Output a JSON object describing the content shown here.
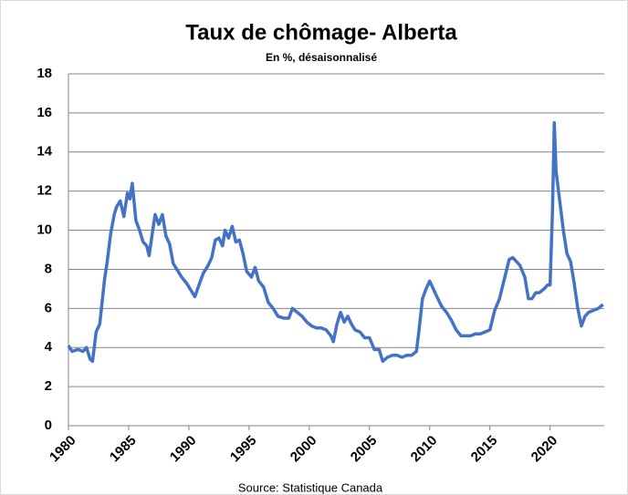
{
  "chart_data": {
    "type": "line",
    "title": "Taux de chômage- Alberta",
    "subtitle": "En %, désaisonnalisé",
    "source": "Source: Statistique Canada",
    "xlim": [
      1980,
      2024.5
    ],
    "xticks": [
      1980,
      1985,
      1990,
      1995,
      2000,
      2005,
      2010,
      2015,
      2020
    ],
    "ylim": [
      0,
      18
    ],
    "yticks": [
      0,
      2,
      4,
      6,
      8,
      10,
      12,
      14,
      16,
      18
    ],
    "grid": true,
    "x": [
      1980.0,
      1980.3,
      1980.8,
      1981.2,
      1981.5,
      1981.8,
      1982.0,
      1982.3,
      1982.6,
      1983.0,
      1983.2,
      1983.5,
      1983.8,
      1984.0,
      1984.3,
      1984.6,
      1984.9,
      1985.1,
      1985.3,
      1985.6,
      1985.9,
      1986.2,
      1986.5,
      1986.7,
      1987.0,
      1987.2,
      1987.5,
      1987.8,
      1988.1,
      1988.4,
      1988.7,
      1989.0,
      1989.4,
      1989.8,
      1990.2,
      1990.5,
      1990.9,
      1991.2,
      1991.6,
      1991.9,
      1992.2,
      1992.5,
      1992.8,
      1993.0,
      1993.3,
      1993.6,
      1993.9,
      1994.2,
      1994.5,
      1994.8,
      1995.2,
      1995.5,
      1995.8,
      1996.2,
      1996.6,
      1997.0,
      1997.4,
      1997.9,
      1998.3,
      1998.6,
      1999.0,
      1999.4,
      1999.8,
      2000.2,
      2000.6,
      2001.0,
      2001.4,
      2001.8,
      2002.0,
      2002.3,
      2002.6,
      2002.9,
      2003.2,
      2003.5,
      2003.8,
      2004.2,
      2004.6,
      2005.0,
      2005.4,
      2005.8,
      2006.1,
      2006.5,
      2006.9,
      2007.3,
      2007.7,
      2008.1,
      2008.5,
      2008.9,
      2009.1,
      2009.4,
      2009.7,
      2010.0,
      2010.3,
      2010.6,
      2011.0,
      2011.4,
      2011.8,
      2012.2,
      2012.6,
      2013.0,
      2013.4,
      2013.8,
      2014.2,
      2014.6,
      2015.0,
      2015.4,
      2015.8,
      2016.2,
      2016.6,
      2016.9,
      2017.2,
      2017.5,
      2017.9,
      2018.2,
      2018.5,
      2018.8,
      2019.1,
      2019.5,
      2019.8,
      2020.0,
      2020.2,
      2020.35,
      2020.5,
      2020.8,
      2021.1,
      2021.4,
      2021.7,
      2022.0,
      2022.3,
      2022.6,
      2022.9,
      2023.2,
      2023.6,
      2024.0,
      2024.4
    ],
    "series": [
      {
        "name": "Alberta",
        "color": "#4472c4",
        "values": [
          4.1,
          3.8,
          3.9,
          3.8,
          4.0,
          3.4,
          3.3,
          4.8,
          5.2,
          7.5,
          8.3,
          9.8,
          10.8,
          11.2,
          11.5,
          10.7,
          11.9,
          11.6,
          12.4,
          10.5,
          10.0,
          9.4,
          9.2,
          8.7,
          10.0,
          10.8,
          10.3,
          10.8,
          9.7,
          9.3,
          8.3,
          8.0,
          7.6,
          7.3,
          6.9,
          6.6,
          7.3,
          7.8,
          8.2,
          8.6,
          9.5,
          9.6,
          9.2,
          10.0,
          9.6,
          10.2,
          9.4,
          9.5,
          8.8,
          7.9,
          7.6,
          8.1,
          7.4,
          7.1,
          6.3,
          6.0,
          5.6,
          5.5,
          5.5,
          6.0,
          5.8,
          5.6,
          5.3,
          5.1,
          5.0,
          5.0,
          4.9,
          4.6,
          4.3,
          5.2,
          5.8,
          5.3,
          5.6,
          5.2,
          4.9,
          4.8,
          4.5,
          4.5,
          3.9,
          3.9,
          3.3,
          3.5,
          3.6,
          3.6,
          3.5,
          3.6,
          3.6,
          3.8,
          4.8,
          6.5,
          7.0,
          7.4,
          7.0,
          6.6,
          6.1,
          5.8,
          5.4,
          4.9,
          4.6,
          4.6,
          4.6,
          4.7,
          4.7,
          4.8,
          4.9,
          5.9,
          6.5,
          7.5,
          8.5,
          8.6,
          8.4,
          8.2,
          7.6,
          6.5,
          6.5,
          6.8,
          6.8,
          7.0,
          7.2,
          7.2,
          11.0,
          15.5,
          13.0,
          11.5,
          10.0,
          8.8,
          8.4,
          7.3,
          6.0,
          5.1,
          5.6,
          5.8,
          5.9,
          6.0,
          6.2
        ]
      }
    ]
  }
}
